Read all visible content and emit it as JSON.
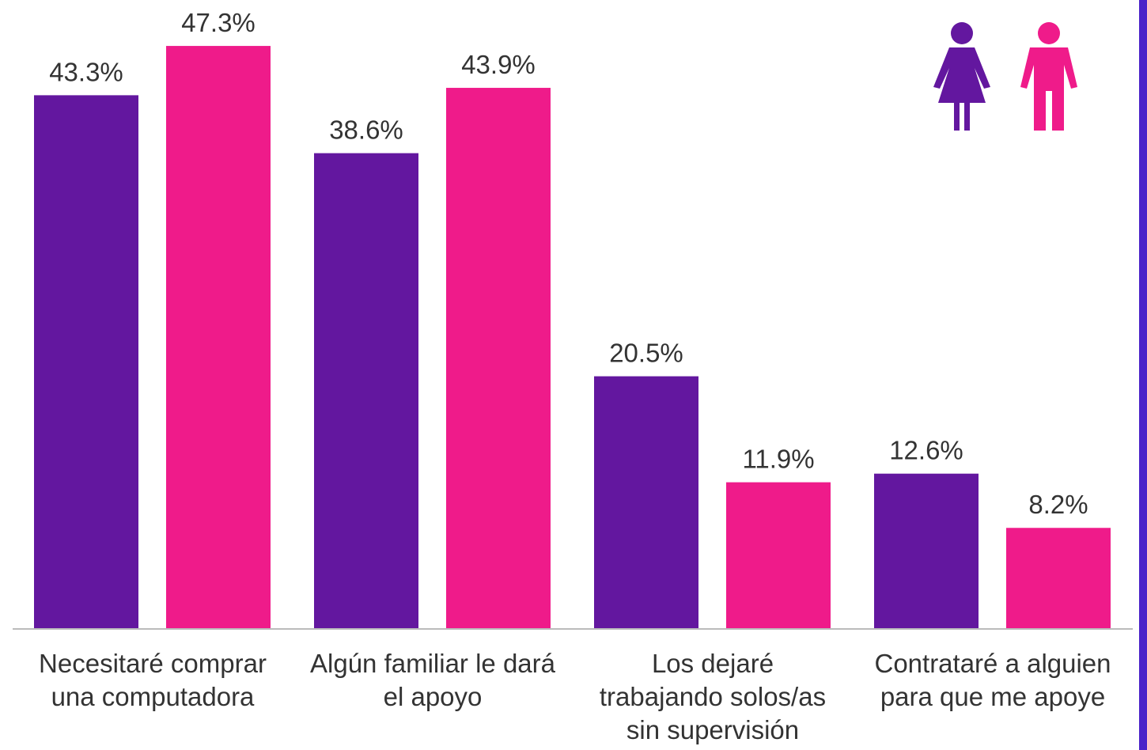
{
  "chart_data": {
    "type": "bar",
    "categories": [
      "Necesitaré comprar\nuna computadora",
      "Algún familiar le dará\nel apoyo",
      "Los dejaré\ntrabajando solos/as\nsin supervisión",
      "Contrataré a alguien\npara que me apoye"
    ],
    "series": [
      {
        "color": "#63179f",
        "values": [
          43.3,
          38.6,
          20.5,
          12.6
        ],
        "value_labels": [
          "43.3%",
          "38.6%",
          "20.5%",
          "12.6%"
        ]
      },
      {
        "color": "#ef1b8a",
        "values": [
          47.3,
          43.9,
          11.9,
          8.2
        ],
        "value_labels": [
          "47.3%",
          "43.9%",
          "11.9%",
          "8.2%"
        ]
      }
    ],
    "ylim": [
      0,
      50
    ]
  }
}
